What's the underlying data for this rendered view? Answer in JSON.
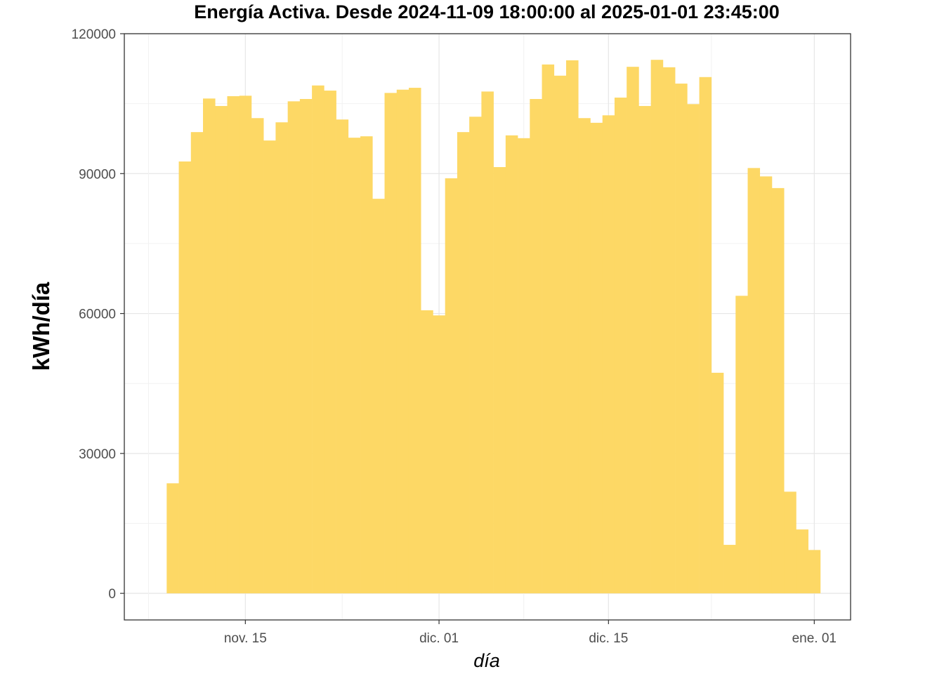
{
  "chart_data": {
    "type": "bar",
    "title": "Energía Activa. Desde  2024-11-09 18:00:00  al  2025-01-01 23:45:00",
    "xlabel": "día",
    "ylabel": "kWh/día",
    "ylim": [
      -5700,
      120000
    ],
    "xlim": [
      "2024-11-05",
      "2025-01-04"
    ],
    "grid": true,
    "bar_color": "#FDD865",
    "y_ticks": [
      0,
      30000,
      60000,
      90000,
      120000
    ],
    "y_tick_labels": [
      "0",
      "30000",
      "60000",
      "90000",
      "120000"
    ],
    "x_ticks": [
      "2024-11-15",
      "2024-12-01",
      "2024-12-15",
      "2025-01-01"
    ],
    "x_tick_labels": [
      "nov. 15",
      "dic. 01",
      "dic. 15",
      "ene. 01"
    ],
    "start_date": "2024-11-09",
    "categories": [
      "2024-11-09",
      "2024-11-10",
      "2024-11-11",
      "2024-11-12",
      "2024-11-13",
      "2024-11-14",
      "2024-11-15",
      "2024-11-16",
      "2024-11-17",
      "2024-11-18",
      "2024-11-19",
      "2024-11-20",
      "2024-11-21",
      "2024-11-22",
      "2024-11-23",
      "2024-11-24",
      "2024-11-25",
      "2024-11-26",
      "2024-11-27",
      "2024-11-28",
      "2024-11-29",
      "2024-11-30",
      "2024-12-01",
      "2024-12-02",
      "2024-12-03",
      "2024-12-04",
      "2024-12-05",
      "2024-12-06",
      "2024-12-07",
      "2024-12-08",
      "2024-12-09",
      "2024-12-10",
      "2024-12-11",
      "2024-12-12",
      "2024-12-13",
      "2024-12-14",
      "2024-12-15",
      "2024-12-16",
      "2024-12-17",
      "2024-12-18",
      "2024-12-19",
      "2024-12-20",
      "2024-12-21",
      "2024-12-22",
      "2024-12-23",
      "2024-12-24",
      "2024-12-25",
      "2024-12-26",
      "2024-12-27",
      "2024-12-28",
      "2024-12-29",
      "2024-12-30",
      "2024-12-31",
      "2025-01-01"
    ],
    "values": [
      23600,
      92600,
      98900,
      106100,
      104500,
      106600,
      106700,
      101900,
      97100,
      101000,
      105500,
      106000,
      108900,
      107800,
      101600,
      97700,
      98000,
      84600,
      107300,
      108000,
      108400,
      60700,
      59600,
      89000,
      98900,
      102200,
      107600,
      91400,
      98200,
      97600,
      106000,
      113400,
      111000,
      114300,
      101900,
      100900,
      102500,
      106300,
      112900,
      104500,
      114400,
      112800,
      109300,
      104900,
      110700,
      47300,
      10400,
      63800,
      91200,
      89400,
      86900,
      21800,
      13700,
      9300
    ]
  }
}
